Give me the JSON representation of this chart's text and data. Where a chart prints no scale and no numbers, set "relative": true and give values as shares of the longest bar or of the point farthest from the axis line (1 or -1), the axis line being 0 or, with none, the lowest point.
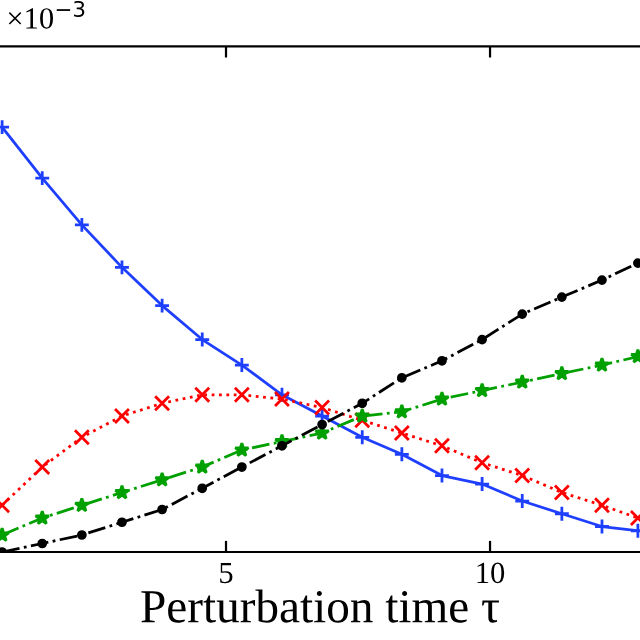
{
  "chart_data": {
    "type": "line",
    "xlabel": "Perturbation time τ",
    "relative": true,
    "annotations": [
      "×10$^{−3}$"
    ],
    "xlim": [
      0.72,
      12.84
    ],
    "xticks": [
      5,
      10
    ],
    "tick_labels": "x",
    "grid": false,
    "legend": false,
    "x": [
      0.76,
      1.52,
      2.27,
      3.03,
      3.79,
      4.55,
      5.3,
      6.06,
      6.82,
      7.58,
      8.33,
      9.09,
      9.85,
      10.61,
      11.36,
      12.12,
      12.8
    ],
    "series": [
      {
        "color": "#1f3fff",
        "marker": "plus",
        "line_style": "solid",
        "values": [
          1,
          0.88,
          0.77,
          0.67,
          0.58,
          0.5,
          0.44,
          0.37,
          0.32,
          0.27,
          0.23,
          0.18,
          0.16,
          0.12,
          0.09,
          0.06,
          0.05
        ]
      },
      {
        "color": "#ff0000",
        "marker": "cross",
        "line_style": "dotted",
        "values": [
          0.11,
          0.2,
          0.27,
          0.32,
          0.35,
          0.37,
          0.37,
          0.36,
          0.34,
          0.31,
          0.28,
          0.25,
          0.21,
          0.18,
          0.14,
          0.11,
          0.08
        ]
      },
      {
        "color": "#00a000",
        "marker": "star",
        "line_style": "dashdot",
        "values": [
          0.04,
          0.08,
          0.11,
          0.14,
          0.17,
          0.2,
          0.24,
          0.26,
          0.28,
          0.32,
          0.33,
          0.36,
          0.38,
          0.4,
          0.42,
          0.44,
          0.46
        ]
      },
      {
        "color": "#000000",
        "marker": "circle",
        "line_style": "dashdot",
        "values": [
          0.0,
          0.02,
          0.04,
          0.07,
          0.1,
          0.15,
          0.2,
          0.25,
          0.3,
          0.35,
          0.41,
          0.45,
          0.5,
          0.56,
          0.6,
          0.64,
          0.68
        ]
      }
    ]
  }
}
